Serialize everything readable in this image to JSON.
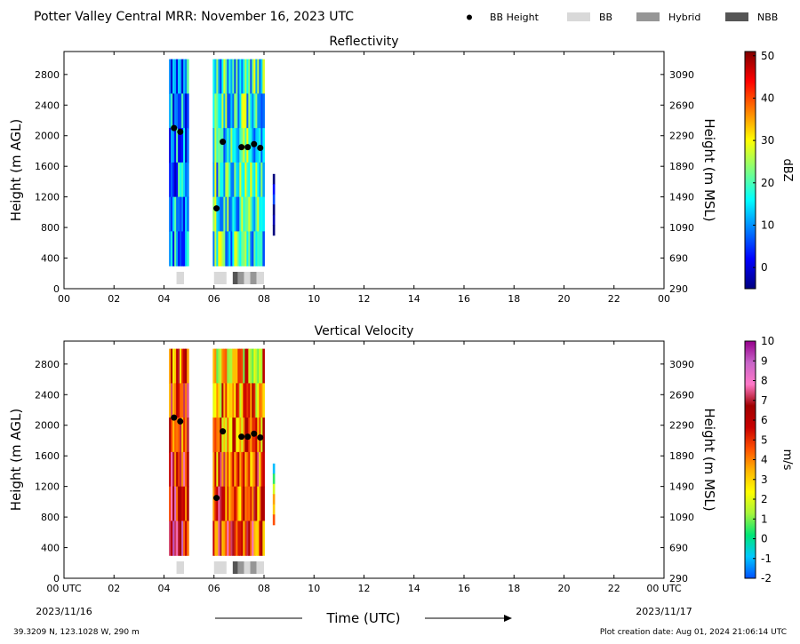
{
  "header": {
    "title": "Potter Valley Central MRR:  November 16, 2023 UTC",
    "legend": [
      {
        "label": "BB Height",
        "color": "#000000",
        "kind": "dot"
      },
      {
        "label": "BB",
        "color": "#d9d9d9",
        "kind": "box"
      },
      {
        "label": "Hybrid",
        "color": "#969696",
        "kind": "box"
      },
      {
        "label": "NBB",
        "color": "#555555",
        "kind": "box"
      }
    ]
  },
  "footer": {
    "location": "39.3209 N, 123.1028 W, 290 m",
    "creation_date": "Plot creation date: Aug 01, 2024 21:06:14 UTC",
    "time_label": "Time (UTC)",
    "date_start": "2023/11/16",
    "date_end": "2023/11/17"
  },
  "chart_data": [
    {
      "type": "heatmap",
      "title": "Reflectivity",
      "ylabel": "Height (m AGL)",
      "ylabel_right": "Height (m MSL)",
      "colorbar_label": "dBZ",
      "xlim": [
        0,
        24
      ],
      "ylim": [
        0,
        3100
      ],
      "x_tick_labels": [
        "00",
        "02",
        "04",
        "06",
        "08",
        "10",
        "12",
        "14",
        "16",
        "18",
        "20",
        "22",
        "00"
      ],
      "y_ticks": [
        0,
        400,
        800,
        1200,
        1600,
        2000,
        2400,
        2800
      ],
      "y_right_ticks": [
        290,
        690,
        1090,
        1490,
        1890,
        2290,
        2690,
        3090
      ],
      "colorbar_ticks": [
        0,
        10,
        20,
        30,
        40,
        50
      ],
      "colorbar_range": [
        -5,
        51
      ],
      "colormap": [
        "#00007f",
        "#0000ff",
        "#007fff",
        "#00ffff",
        "#7fff7f",
        "#ffff00",
        "#ff7f00",
        "#ff0000",
        "#7f0000"
      ],
      "echo_blocks": [
        {
          "start": 4.2,
          "end": 4.95,
          "top": 3000,
          "bottom": 300,
          "level": 10
        },
        {
          "start": 5.95,
          "end": 7.95,
          "top": 3000,
          "bottom": 300,
          "level": 18
        },
        {
          "start": 8.35,
          "end": 8.42,
          "top": 1500,
          "bottom": 700,
          "level": -3
        }
      ],
      "bb_height_points": [
        {
          "x": 4.4,
          "y": 2100
        },
        {
          "x": 4.65,
          "y": 2050
        },
        {
          "x": 6.1,
          "y": 1050
        },
        {
          "x": 6.35,
          "y": 1920
        },
        {
          "x": 7.1,
          "y": 1850
        },
        {
          "x": 7.35,
          "y": 1850
        },
        {
          "x": 7.6,
          "y": 1890
        },
        {
          "x": 7.85,
          "y": 1840
        }
      ],
      "bb_type_strip": [
        {
          "start": 4.5,
          "end": 4.8,
          "type": "BB"
        },
        {
          "start": 6.0,
          "end": 6.5,
          "type": "BB"
        },
        {
          "start": 6.75,
          "end": 6.95,
          "type": "NBB"
        },
        {
          "start": 6.95,
          "end": 7.2,
          "type": "Hybrid"
        },
        {
          "start": 7.2,
          "end": 7.45,
          "type": "BB"
        },
        {
          "start": 7.45,
          "end": 7.7,
          "type": "Hybrid"
        },
        {
          "start": 7.7,
          "end": 8.0,
          "type": "BB"
        }
      ]
    },
    {
      "type": "heatmap",
      "title": "Vertical Velocity",
      "ylabel": "Height (m AGL)",
      "ylabel_right": "Height (m MSL)",
      "colorbar_label": "m/s",
      "xlim": [
        0,
        24
      ],
      "ylim": [
        0,
        3100
      ],
      "x_tick_labels": [
        "00 UTC",
        "02",
        "04",
        "06",
        "08",
        "10",
        "12",
        "14",
        "16",
        "18",
        "20",
        "22",
        "00 UTC"
      ],
      "y_ticks": [
        0,
        400,
        800,
        1200,
        1600,
        2000,
        2400,
        2800
      ],
      "y_right_ticks": [
        290,
        690,
        1090,
        1490,
        1890,
        2290,
        2690,
        3090
      ],
      "colorbar_ticks": [
        -2,
        -1,
        0,
        1,
        2,
        3,
        4,
        5,
        6,
        7,
        8,
        9,
        10
      ],
      "colorbar_range": [
        -2,
        10
      ],
      "colormap": [
        "#0050ff",
        "#00c8ff",
        "#00e676",
        "#a5f53c",
        "#ffff00",
        "#ffb400",
        "#ff5000",
        "#c80000",
        "#a00000",
        "#ff78c8",
        "#c864c8",
        "#96008c"
      ],
      "echo_blocks": [
        {
          "start": 4.2,
          "end": 4.95,
          "top": 3000,
          "bottom": 300,
          "level": 4.5
        },
        {
          "start": 5.95,
          "end": 7.95,
          "top": 3000,
          "bottom": 300,
          "level": 3.5
        },
        {
          "start": 8.35,
          "end": 8.42,
          "top": 1500,
          "bottom": 700,
          "level": 1
        }
      ],
      "bb_height_points": [
        {
          "x": 4.4,
          "y": 2100
        },
        {
          "x": 4.65,
          "y": 2050
        },
        {
          "x": 6.1,
          "y": 1050
        },
        {
          "x": 6.35,
          "y": 1920
        },
        {
          "x": 7.1,
          "y": 1850
        },
        {
          "x": 7.35,
          "y": 1850
        },
        {
          "x": 7.6,
          "y": 1890
        },
        {
          "x": 7.85,
          "y": 1840
        }
      ],
      "bb_type_strip": [
        {
          "start": 4.5,
          "end": 4.8,
          "type": "BB"
        },
        {
          "start": 6.0,
          "end": 6.5,
          "type": "BB"
        },
        {
          "start": 6.75,
          "end": 6.95,
          "type": "NBB"
        },
        {
          "start": 6.95,
          "end": 7.2,
          "type": "Hybrid"
        },
        {
          "start": 7.2,
          "end": 7.45,
          "type": "BB"
        },
        {
          "start": 7.45,
          "end": 7.7,
          "type": "Hybrid"
        },
        {
          "start": 7.7,
          "end": 8.0,
          "type": "BB"
        }
      ]
    }
  ]
}
